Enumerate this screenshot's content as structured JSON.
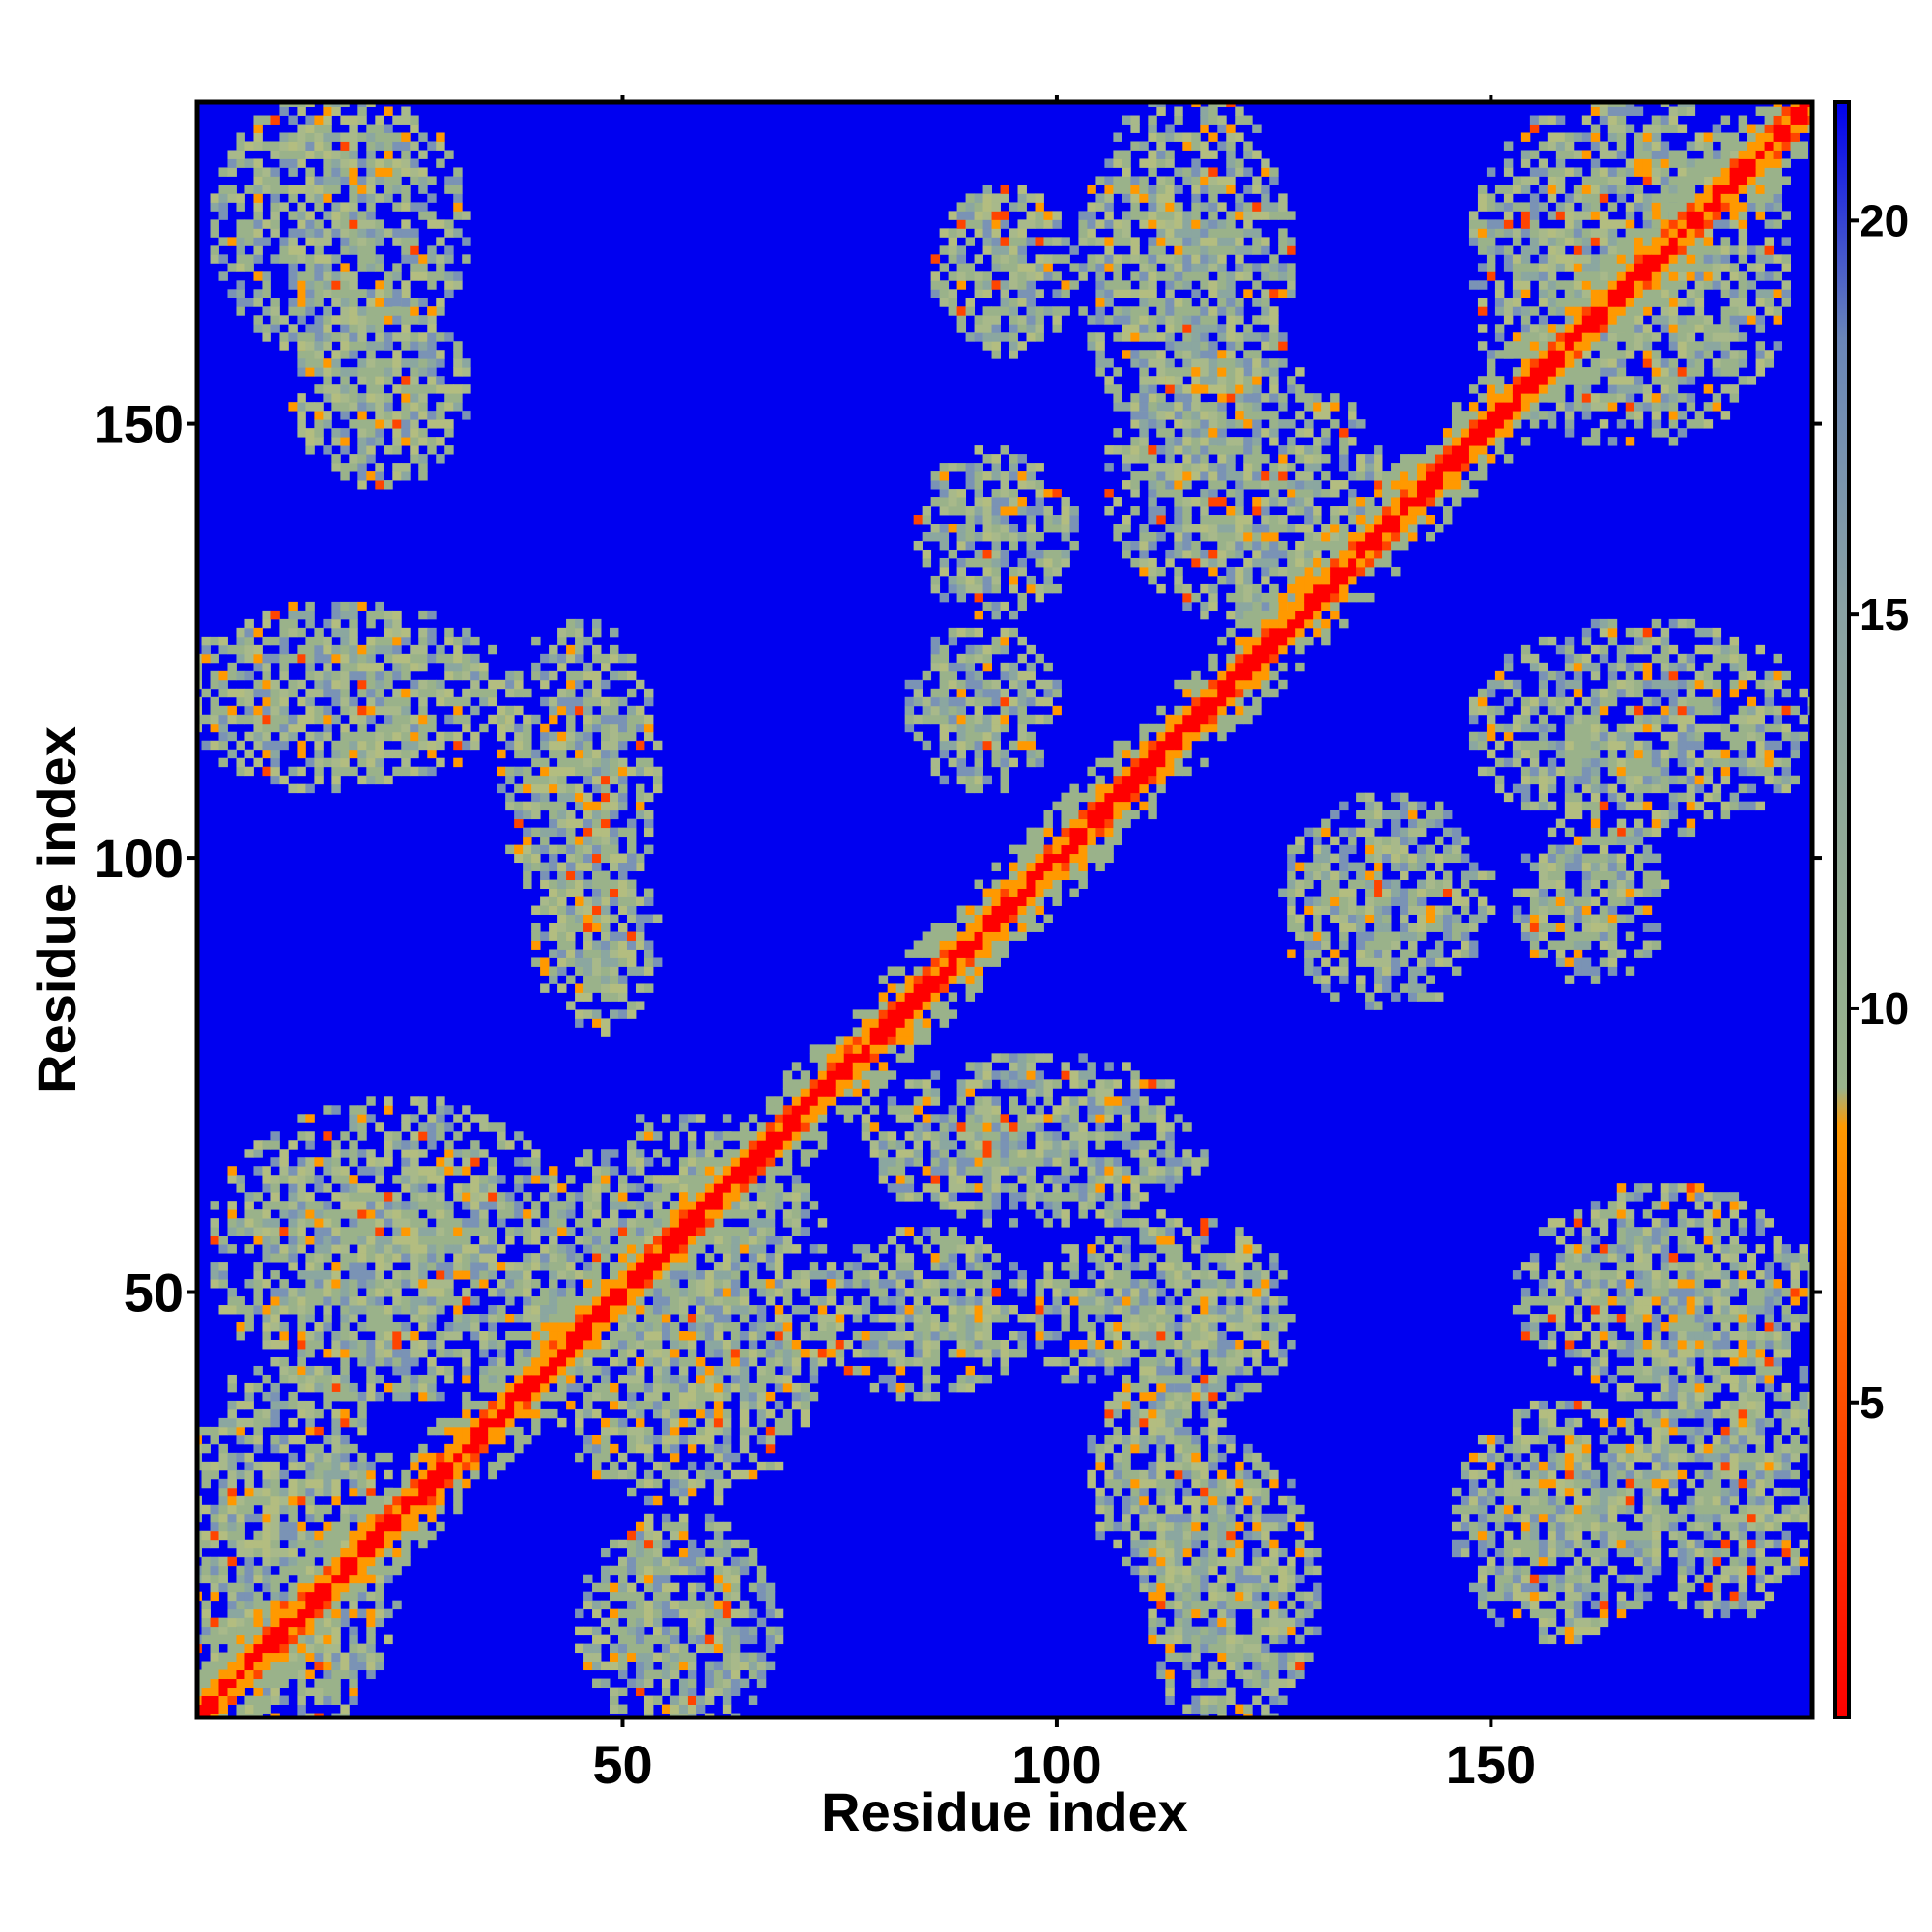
{
  "chart_data": {
    "type": "heatmap",
    "title": "",
    "xlabel": "Residue index",
    "ylabel": "Residue index",
    "xlim": [
      1,
      187
    ],
    "ylim": [
      1,
      187
    ],
    "x_ticks": [
      50,
      100,
      150
    ],
    "y_ticks": [
      50,
      100,
      150
    ],
    "colorbar": {
      "range": [
        1,
        21.5
      ],
      "ticks": [
        5,
        10,
        15,
        20
      ],
      "colors": [
        {
          "value": 1,
          "color": "#ff0000"
        },
        {
          "value": 4.5,
          "color": "#ff4400"
        },
        {
          "value": 8.5,
          "color": "#ff9900"
        },
        {
          "value": 9,
          "color": "#99b38c"
        },
        {
          "value": 15,
          "color": "#8aa2a3"
        },
        {
          "value": 18.5,
          "color": "#6a86b8"
        },
        {
          "value": 21.5,
          "color": "#0000f0"
        }
      ],
      "background_color": "#0000f0"
    },
    "diagonal_band": {
      "core": "#ff0000",
      "inner": "#ff9900",
      "outer": "#9ab28a"
    },
    "contact_blocks": [
      {
        "x": [
          5,
          30
        ],
        "y": [
          160,
          186
        ]
      },
      {
        "x": [
          14,
          30
        ],
        "y": [
          145,
          163
        ]
      },
      {
        "x": [
          1,
          35
        ],
        "y": [
          110,
          127
        ]
      },
      {
        "x": [
          38,
          52
        ],
        "y": [
          95,
          125
        ]
      },
      {
        "x": [
          42,
          52
        ],
        "y": [
          82,
          100
        ]
      },
      {
        "x": [
          5,
          42
        ],
        "y": [
          40,
          70
        ]
      },
      {
        "x": [
          42,
          72
        ],
        "y": [
          28,
          68
        ]
      },
      {
        "x": [
          1,
          22
        ],
        "y": [
          1,
          40
        ]
      },
      {
        "x": [
          47,
          66
        ],
        "y": [
          1,
          22
        ]
      },
      {
        "x": [
          86,
          100
        ],
        "y": [
          130,
          145
        ]
      },
      {
        "x": [
          85,
          98
        ],
        "y": [
          110,
          125
        ]
      },
      {
        "x": [
          75,
          95
        ],
        "y": [
          40,
          55
        ]
      },
      {
        "x": [
          100,
          125
        ],
        "y": [
          38,
          57
        ]
      },
      {
        "x": [
          106,
          118
        ],
        "y": [
          18,
          40
        ]
      },
      {
        "x": [
          112,
          128
        ],
        "y": [
          1,
          30
        ]
      },
      {
        "x": [
          105,
          125
        ],
        "y": [
          150,
          186
        ]
      },
      {
        "x": [
          88,
          100
        ],
        "y": [
          160,
          175
        ]
      },
      {
        "x": [
          108,
          135
        ],
        "y": [
          130,
          155
        ]
      },
      {
        "x": [
          128,
          148
        ],
        "y": [
          85,
          105
        ]
      },
      {
        "x": [
          150,
          185
        ],
        "y": [
          105,
          125
        ]
      },
      {
        "x": [
          155,
          168
        ],
        "y": [
          88,
          102
        ]
      },
      {
        "x": [
          150,
          182
        ],
        "y": [
          150,
          186
        ]
      },
      {
        "x": [
          148,
          168
        ],
        "y": [
          12,
          35
        ]
      },
      {
        "x": [
          168,
          186
        ],
        "y": [
          15,
          45
        ]
      },
      {
        "x": [
          155,
          185
        ],
        "y": [
          40,
          60
        ]
      },
      {
        "x": [
          80,
          115
        ],
        "y": [
          60,
          75
        ]
      }
    ]
  }
}
